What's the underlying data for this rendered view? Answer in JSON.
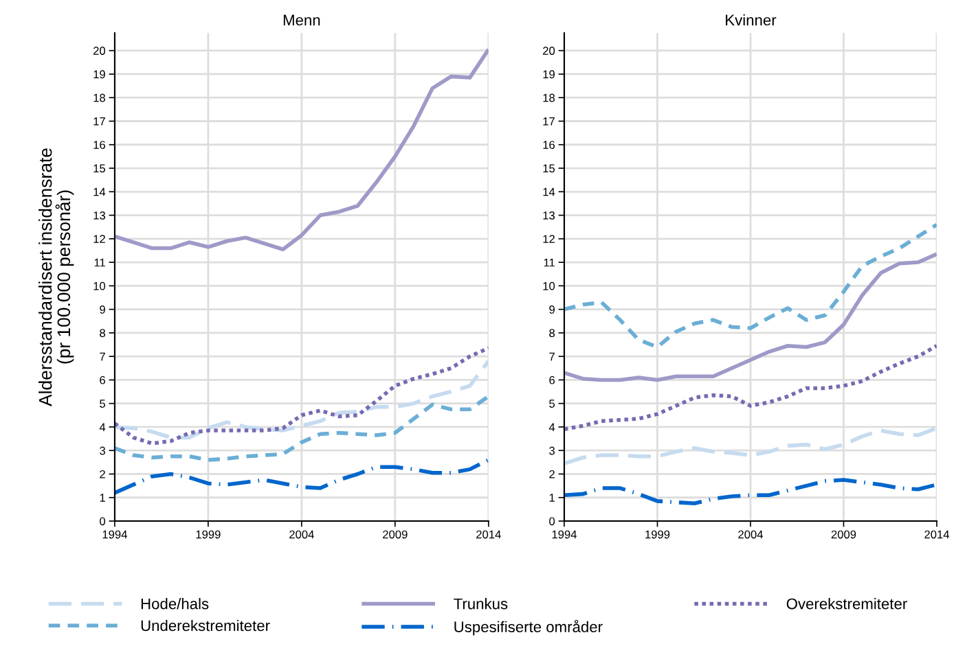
{
  "chart_data": [
    {
      "type": "line",
      "title": "Menn",
      "ylabel": "Aldersstandardisert insidensrate\n(pr 100.000 personår)",
      "x": [
        1994,
        1995,
        1996,
        1997,
        1998,
        1999,
        2000,
        2001,
        2002,
        2003,
        2004,
        2005,
        2006,
        2007,
        2008,
        2009,
        2010,
        2011,
        2012,
        2013,
        2014
      ],
      "xlim": [
        1994,
        2014
      ],
      "xticks": [
        1994,
        1999,
        2004,
        2009,
        2014
      ],
      "ylim": [
        0,
        20.75
      ],
      "yticks": [
        0,
        1,
        2,
        3,
        4,
        5,
        6,
        7,
        8,
        9,
        10,
        11,
        12,
        13,
        14,
        15,
        16,
        17,
        18,
        19,
        20
      ],
      "grid": true,
      "legend": "bottom",
      "marker": "none",
      "series": [
        {
          "name": "Hode/hals",
          "color": "#c6dbef",
          "line_style": "longdash",
          "values": [
            4.0,
            3.95,
            3.8,
            3.55,
            3.55,
            3.95,
            4.2,
            4.0,
            3.9,
            3.85,
            4.05,
            4.25,
            4.6,
            4.65,
            4.85,
            4.85,
            5.0,
            5.3,
            5.5,
            5.75,
            6.8
          ]
        },
        {
          "name": "Trunkus",
          "color": "#9e9ac8",
          "line_style": "solid",
          "values": [
            12.1,
            11.85,
            11.6,
            11.6,
            11.85,
            11.65,
            11.9,
            12.05,
            11.8,
            11.55,
            12.15,
            13.0,
            13.15,
            13.4,
            14.4,
            15.5,
            16.8,
            18.4,
            18.9,
            18.85,
            20.05
          ]
        },
        {
          "name": "Overekstremiteter",
          "color": "#756bb1",
          "line_style": "dotted",
          "values": [
            4.15,
            3.55,
            3.3,
            3.4,
            3.75,
            3.85,
            3.85,
            3.85,
            3.85,
            3.95,
            4.5,
            4.7,
            4.45,
            4.5,
            5.1,
            5.75,
            6.05,
            6.25,
            6.5,
            7.0,
            7.35
          ]
        },
        {
          "name": "Underekstremiteter",
          "color": "#6baed6",
          "line_style": "dashed",
          "values": [
            3.1,
            2.8,
            2.7,
            2.75,
            2.75,
            2.6,
            2.65,
            2.75,
            2.8,
            2.85,
            3.35,
            3.7,
            3.75,
            3.7,
            3.65,
            3.75,
            4.35,
            4.95,
            4.75,
            4.75,
            5.3
          ]
        },
        {
          "name": "Uspesifiserte områder",
          "color": "#0066cc",
          "line_style": "dashdot",
          "values": [
            1.2,
            1.55,
            1.9,
            2.0,
            1.85,
            1.6,
            1.55,
            1.65,
            1.75,
            1.6,
            1.45,
            1.4,
            1.75,
            2.0,
            2.3,
            2.3,
            2.2,
            2.05,
            2.05,
            2.2,
            2.6
          ]
        }
      ]
    },
    {
      "type": "line",
      "title": "Kvinner",
      "x": [
        1994,
        1995,
        1996,
        1997,
        1998,
        1999,
        2000,
        2001,
        2002,
        2003,
        2004,
        2005,
        2006,
        2007,
        2008,
        2009,
        2010,
        2011,
        2012,
        2013,
        2014
      ],
      "xlim": [
        1994,
        2014
      ],
      "xticks": [
        1994,
        1999,
        2004,
        2009,
        2014
      ],
      "ylim": [
        0,
        20.75
      ],
      "yticks": [
        0,
        1,
        2,
        3,
        4,
        5,
        6,
        7,
        8,
        9,
        10,
        11,
        12,
        13,
        14,
        15,
        16,
        17,
        18,
        19,
        20
      ],
      "grid": true,
      "marker": "none",
      "series": [
        {
          "color": "#c6dbef",
          "line_style": "longdash",
          "values": [
            2.45,
            2.7,
            2.8,
            2.8,
            2.75,
            2.75,
            2.95,
            3.1,
            2.95,
            2.9,
            2.8,
            2.95,
            3.2,
            3.25,
            3.05,
            3.25,
            3.6,
            3.85,
            3.7,
            3.65,
            3.95
          ]
        },
        {
          "color": "#9e9ac8",
          "line_style": "solid",
          "values": [
            6.3,
            6.05,
            6.0,
            6.0,
            6.1,
            6.0,
            6.15,
            6.15,
            6.15,
            6.5,
            6.85,
            7.2,
            7.45,
            7.4,
            7.6,
            8.35,
            9.6,
            10.55,
            10.95,
            11.0,
            11.35
          ]
        },
        {
          "color": "#756bb1",
          "line_style": "dotted",
          "values": [
            3.9,
            4.05,
            4.25,
            4.3,
            4.35,
            4.55,
            4.9,
            5.25,
            5.35,
            5.3,
            4.9,
            5.05,
            5.3,
            5.65,
            5.65,
            5.75,
            5.95,
            6.35,
            6.7,
            7.0,
            7.45
          ]
        },
        {
          "color": "#6baed6",
          "line_style": "dashed",
          "values": [
            9.0,
            9.2,
            9.3,
            8.55,
            7.7,
            7.4,
            8.05,
            8.4,
            8.55,
            8.25,
            8.2,
            8.65,
            9.05,
            8.55,
            8.75,
            9.75,
            10.85,
            11.25,
            11.6,
            12.1,
            12.6
          ]
        },
        {
          "color": "#0066cc",
          "line_style": "dashdot",
          "values": [
            1.1,
            1.15,
            1.4,
            1.4,
            1.15,
            0.85,
            0.8,
            0.75,
            0.95,
            1.05,
            1.1,
            1.1,
            1.3,
            1.5,
            1.7,
            1.75,
            1.65,
            1.55,
            1.4,
            1.35,
            1.55
          ]
        }
      ]
    }
  ]
}
